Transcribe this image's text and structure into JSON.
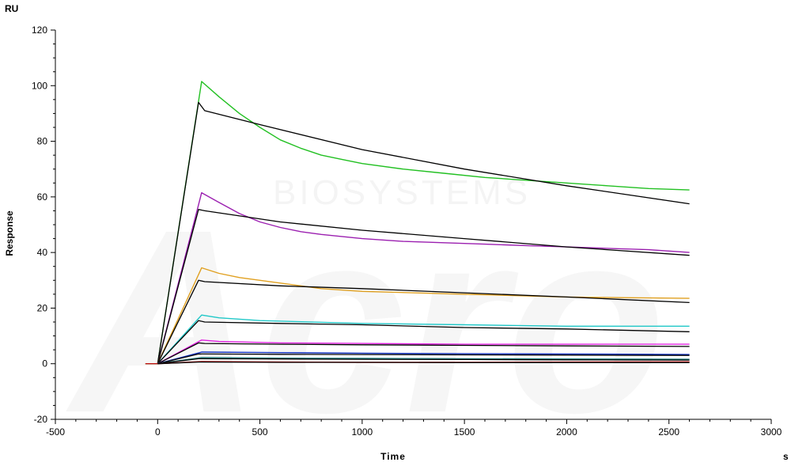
{
  "chart_data": {
    "type": "line",
    "title": "",
    "xlabel": "Time",
    "ylabel": "Response",
    "x_unit": "s",
    "y_unit": "RU",
    "xlim": [
      -500,
      3000
    ],
    "ylim": [
      -20,
      120
    ],
    "x_ticks": [
      -500,
      0,
      500,
      1000,
      1500,
      2000,
      2500,
      3000
    ],
    "y_ticks": [
      -20,
      0,
      20,
      40,
      60,
      80,
      100,
      120
    ],
    "grid": false,
    "legend": "none",
    "watermark": [
      "BIOSYSTEMS",
      "Acro"
    ],
    "series": [
      {
        "color": "#22c022",
        "x": [
          -60,
          0,
          215,
          300,
          400,
          500,
          600,
          700,
          800,
          900,
          1000,
          1200,
          1400,
          1600,
          1800,
          2000,
          2200,
          2400,
          2600
        ],
        "y": [
          0,
          0,
          101.5,
          96,
          90,
          85,
          80.5,
          77.5,
          75,
          73.5,
          72,
          70,
          68.5,
          67,
          66,
          65,
          64,
          63,
          62.5
        ]
      },
      {
        "color": "#000000",
        "x": [
          0,
          200,
          230,
          500,
          1000,
          1500,
          2000,
          2600
        ],
        "y": [
          0,
          94,
          91,
          86,
          77,
          70,
          64,
          57.5
        ]
      },
      {
        "color": "#9b1fb0",
        "x": [
          0,
          215,
          300,
          400,
          500,
          600,
          700,
          800,
          1000,
          1200,
          1400,
          1600,
          1800,
          2000,
          2200,
          2400,
          2600
        ],
        "y": [
          0,
          61.5,
          58,
          54,
          51,
          49,
          47.5,
          46.5,
          45,
          44,
          43.5,
          43,
          42.5,
          42,
          41.5,
          41,
          40
        ]
      },
      {
        "color": "#000000",
        "x": [
          0,
          200,
          230,
          600,
          1000,
          1500,
          2000,
          2600
        ],
        "y": [
          0,
          55.5,
          55,
          51,
          48,
          45,
          42,
          39
        ]
      },
      {
        "color": "#e0a020",
        "x": [
          0,
          215,
          300,
          400,
          500,
          600,
          700,
          800,
          1000,
          1500,
          2000,
          2600
        ],
        "y": [
          0,
          34.5,
          32.5,
          31,
          30,
          29,
          28,
          27,
          26,
          25,
          24,
          23.5
        ]
      },
      {
        "color": "#000000",
        "x": [
          0,
          200,
          230,
          600,
          1000,
          1500,
          2000,
          2600
        ],
        "y": [
          0,
          30,
          29.5,
          28,
          27,
          25.5,
          24,
          22
        ]
      },
      {
        "color": "#20c8c8",
        "x": [
          0,
          215,
          300,
          500,
          1000,
          1500,
          2000,
          2600
        ],
        "y": [
          0,
          17.5,
          16.5,
          15.5,
          14.5,
          14,
          13.5,
          13.5
        ]
      },
      {
        "color": "#000000",
        "x": [
          0,
          200,
          230,
          600,
          1000,
          1500,
          2000,
          2600
        ],
        "y": [
          0,
          15.5,
          15,
          14.5,
          14,
          13,
          12.5,
          11.5
        ]
      },
      {
        "color": "#e020e0",
        "x": [
          0,
          215,
          300,
          600,
          1000,
          1500,
          2000,
          2600
        ],
        "y": [
          0,
          8.5,
          8,
          7.5,
          7.3,
          7,
          7,
          7
        ]
      },
      {
        "color": "#000000",
        "x": [
          0,
          200,
          230,
          600,
          1000,
          1500,
          2000,
          2600
        ],
        "y": [
          0,
          7.5,
          7.3,
          7,
          6.8,
          6.6,
          6.4,
          6.2
        ]
      },
      {
        "color": "#1030c0",
        "x": [
          0,
          215,
          600,
          1000,
          1500,
          2000,
          2600
        ],
        "y": [
          0,
          4.2,
          4,
          3.8,
          3.6,
          3.5,
          3.3
        ]
      },
      {
        "color": "#000000",
        "x": [
          0,
          200,
          600,
          1000,
          1500,
          2000,
          2600
        ],
        "y": [
          0,
          3.5,
          3.4,
          3.3,
          3.2,
          3.1,
          3
        ]
      },
      {
        "color": "#208080",
        "x": [
          0,
          215,
          600,
          1000,
          1500,
          2000,
          2600
        ],
        "y": [
          0,
          2.2,
          2,
          1.9,
          1.8,
          1.7,
          1.6
        ]
      },
      {
        "color": "#000000",
        "x": [
          0,
          200,
          600,
          1000,
          1500,
          2000,
          2600
        ],
        "y": [
          0,
          1.8,
          1.7,
          1.6,
          1.5,
          1.4,
          1.3
        ]
      },
      {
        "color": "#c01010",
        "x": [
          -60,
          0,
          215,
          600,
          1000,
          1500,
          2000,
          2600
        ],
        "y": [
          0,
          0,
          0.8,
          0.6,
          0.5,
          0.5,
          0.6,
          0.7
        ]
      },
      {
        "color": "#000000",
        "x": [
          0,
          200,
          600,
          1000,
          1500,
          2000,
          2600
        ],
        "y": [
          0,
          0.6,
          0.5,
          0.5,
          0.4,
          0.4,
          0.4
        ]
      }
    ]
  }
}
